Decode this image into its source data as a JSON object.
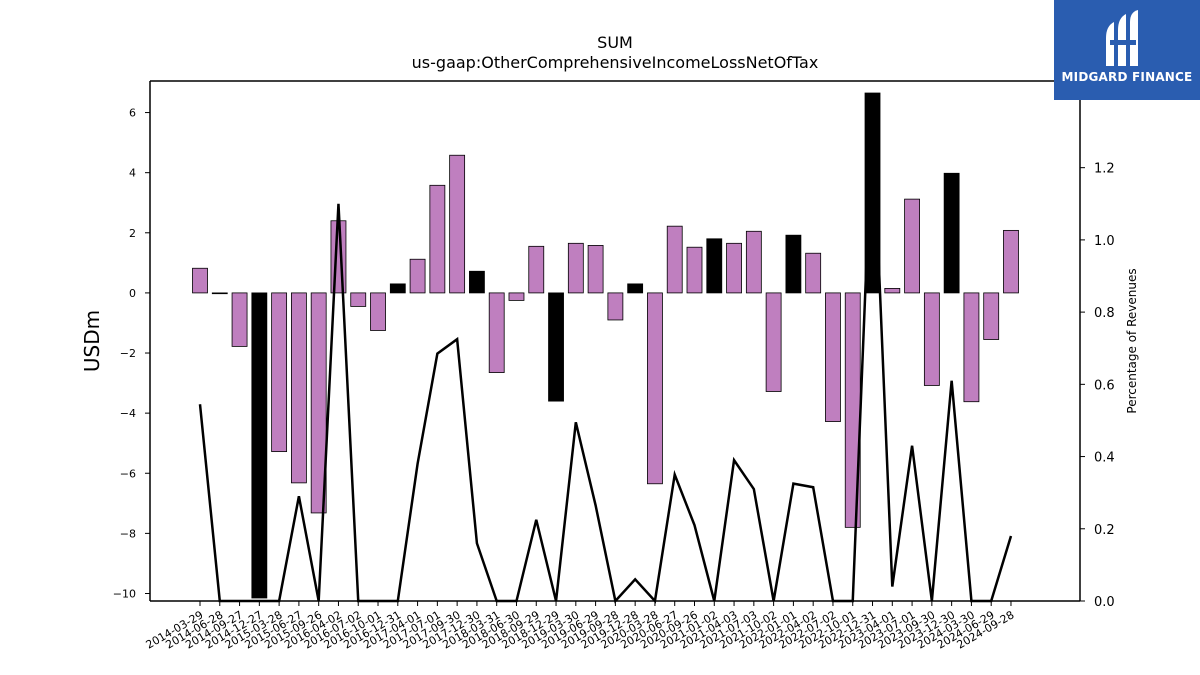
{
  "chart_data": {
    "type": "bar",
    "title": "SUM",
    "subtitle": "us-gaap:OtherComprehensiveIncomeLossNetOfTax",
    "ylabel": "USDm",
    "y2label": "Percentage of Revenues",
    "ylim": [
      -10.25,
      7.05
    ],
    "y2lim": [
      0.0,
      1.44
    ],
    "yticks": [
      -10,
      -8,
      -6,
      -4,
      -2,
      0,
      2,
      4,
      6
    ],
    "y2ticks": [
      0.0,
      0.2,
      0.4,
      0.6,
      0.8,
      1.0,
      1.2
    ],
    "categories": [
      "2014-03-29",
      "2014-06-28",
      "2014-09-27",
      "2014-12-27",
      "2015-03-28",
      "2015-06-27",
      "2015-09-26",
      "2016-04-02",
      "2016-07-02",
      "2016-10-01",
      "2016-12-31",
      "2017-04-01",
      "2017-07-01",
      "2017-09-30",
      "2017-12-30",
      "2018-03-31",
      "2018-06-30",
      "2018-09-29",
      "2018-12-29",
      "2019-03-30",
      "2019-06-29",
      "2019-09-28",
      "2019-12-28",
      "2020-03-28",
      "2020-06-27",
      "2020-09-26",
      "2021-01-02",
      "2021-04-03",
      "2021-07-03",
      "2021-10-02",
      "2022-01-01",
      "2022-04-02",
      "2022-07-02",
      "2022-10-01",
      "2022-12-31",
      "2023-04-01",
      "2023-07-01",
      "2023-09-30",
      "2023-12-30",
      "2024-03-30",
      "2024-06-29",
      "2024-09-28"
    ],
    "series": [
      {
        "values": [
          0.82,
          0.0,
          -1.78,
          -10.15,
          -5.28,
          -6.32,
          -7.32,
          2.4,
          -0.45,
          -1.25,
          0.3,
          1.12,
          3.58,
          4.58,
          0.72,
          -2.65,
          -0.25,
          1.55,
          -3.6,
          1.65,
          1.58,
          -0.9,
          0.3,
          -6.35,
          2.22,
          1.52,
          1.8,
          1.65,
          2.05,
          -3.28,
          1.92,
          1.32,
          -4.28,
          -7.8,
          6.65,
          0.15,
          3.12,
          -3.08,
          3.98,
          -3.62,
          -1.55,
          2.08
        ],
        "highlight": [
          false,
          false,
          false,
          true,
          false,
          false,
          false,
          false,
          false,
          false,
          true,
          false,
          false,
          false,
          true,
          false,
          false,
          false,
          true,
          false,
          false,
          false,
          true,
          false,
          false,
          false,
          true,
          false,
          false,
          false,
          true,
          false,
          false,
          false,
          true,
          false,
          false,
          false,
          true,
          false,
          false,
          false
        ]
      },
      {
        "axis": "right",
        "type": "line",
        "values": [
          0.545,
          0.0,
          0.0,
          0.0,
          0.0,
          0.29,
          0.0,
          1.1,
          0.0,
          0.0,
          0.0,
          0.38,
          0.685,
          0.725,
          0.16,
          0.0,
          0.0,
          0.225,
          0.0,
          0.495,
          0.265,
          0.0,
          0.06,
          0.0,
          0.35,
          0.21,
          0.0,
          0.39,
          0.31,
          0.0,
          0.325,
          0.315,
          0.0,
          0.0,
          1.35,
          0.04,
          0.43,
          0.0,
          0.61,
          0.0,
          0.0,
          0.18
        ]
      }
    ],
    "colors": {
      "bar": "#bf7fbf",
      "highlight": "#000000",
      "line": "#000000",
      "axis": "#000000"
    },
    "grid": false,
    "legend": "none"
  },
  "logo": {
    "text": "MIDGARD FINANCE",
    "background": "#2a5db0"
  }
}
